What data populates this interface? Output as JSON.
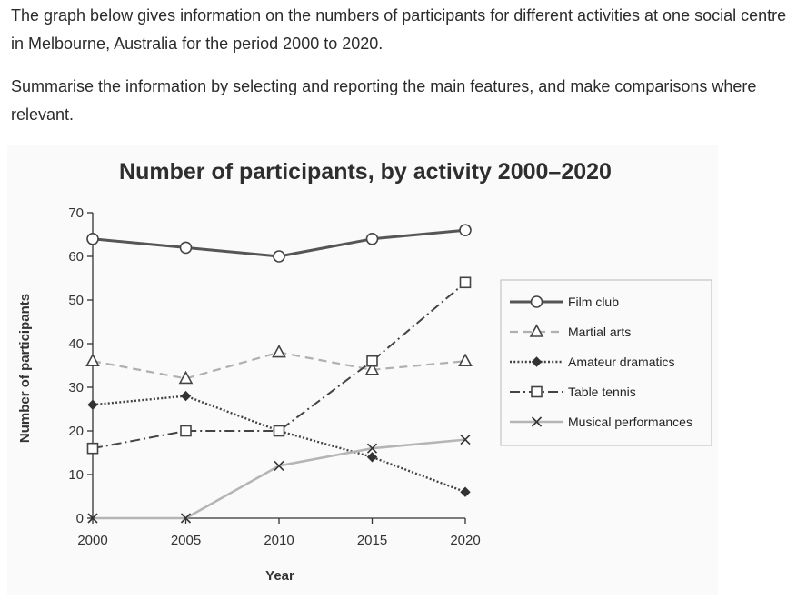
{
  "task": {
    "paragraph1": "The graph below gives information on the numbers of participants for different activities at one social centre in Melbourne, Australia for the period 2000 to 2020.",
    "paragraph2": "Summarise the information by selecting and reporting the main features, and make comparisons where relevant."
  },
  "chart_data": {
    "type": "line",
    "title": "Number of participants, by activity 2000–2020",
    "xlabel": "Year",
    "ylabel": "Number of participants",
    "x": [
      2000,
      2005,
      2010,
      2015,
      2020
    ],
    "ylim": [
      0,
      70
    ],
    "yticks": [
      0,
      10,
      20,
      30,
      40,
      50,
      60,
      70
    ],
    "grid": false,
    "legend_position": "right",
    "series": [
      {
        "name": "Film club",
        "values": [
          64,
          62,
          60,
          64,
          66
        ],
        "color": "#555555",
        "style": "solid-thick",
        "marker": "circle"
      },
      {
        "name": "Martial arts",
        "values": [
          36,
          32,
          38,
          34,
          36
        ],
        "color": "#b0b0b0",
        "style": "dashed",
        "marker": "triangle"
      },
      {
        "name": "Amateur dramatics",
        "values": [
          26,
          28,
          20,
          14,
          6
        ],
        "color": "#444444",
        "style": "dotted",
        "marker": "diamond"
      },
      {
        "name": "Table tennis",
        "values": [
          16,
          20,
          20,
          36,
          54
        ],
        "color": "#444444",
        "style": "dashdot",
        "marker": "square"
      },
      {
        "name": "Musical performances",
        "values": [
          0,
          0,
          12,
          16,
          18
        ],
        "color": "#b5b5b5",
        "style": "solid",
        "marker": "cross"
      }
    ]
  }
}
